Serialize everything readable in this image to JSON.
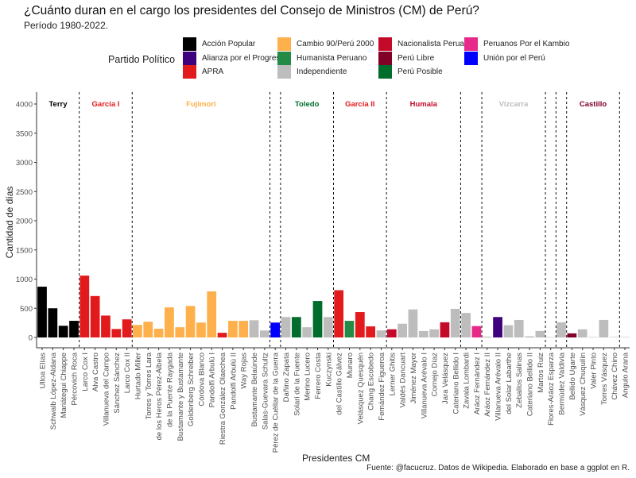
{
  "chart_data": {
    "type": "bar",
    "title": "¿Cuánto duran en el cargo los presidentes del Consejo de Ministros (CM) de Perú?",
    "subtitle": "Período 1980-2022.",
    "xlabel": "Presidentes CM",
    "ylabel": "Cantidad de días",
    "caption": "Fuente: @facucruz. Datos de Wikipedia. Elaborado en base a ggplot en R.",
    "ylim": [
      0,
      4000
    ],
    "yticks": [
      0,
      500,
      1000,
      1500,
      2000,
      2500,
      3000,
      3500,
      4000
    ],
    "grid": false,
    "legend": {
      "title": "Partido Político",
      "placement": "top",
      "entries": [
        {
          "name": "Acción Popular",
          "color": "#000000"
        },
        {
          "name": "Alianza por el Progreso",
          "color": "#3f007d"
        },
        {
          "name": "APRA",
          "color": "#e31a1c"
        },
        {
          "name": "Cambio 90/Perú 2000",
          "color": "#fdb04b"
        },
        {
          "name": "Humanista Peruano",
          "color": "#238b45"
        },
        {
          "name": "Independiente",
          "color": "#bdbdbd"
        },
        {
          "name": "Nacionalista Peruano",
          "color": "#c40a2a"
        },
        {
          "name": "Perú Libre",
          "color": "#800026"
        },
        {
          "name": "Perú Posible",
          "color": "#006d2c"
        },
        {
          "name": "Peruanos Por el Kambio",
          "color": "#e7298a"
        },
        {
          "name": "Unión por el Perú",
          "color": "#0000ff"
        }
      ]
    },
    "periods": [
      {
        "label": "Terry",
        "color": "#000000",
        "start": 0,
        "end": 3
      },
      {
        "label": "García I",
        "color": "#e31a1c",
        "start": 4,
        "end": 8
      },
      {
        "label": "Fujimori",
        "color": "#fdb04b",
        "start": 9,
        "end": 21
      },
      {
        "label": "",
        "color": "#bdbdbd",
        "start": 22,
        "end": 22
      },
      {
        "label": "Toledo",
        "color": "#006d2c",
        "start": 23,
        "end": 27
      },
      {
        "label": "García II",
        "color": "#e31a1c",
        "start": 28,
        "end": 32
      },
      {
        "label": "Humala",
        "color": "#c40a2a",
        "start": 33,
        "end": 39
      },
      {
        "label": "",
        "color": "#bdbdbd",
        "start": 40,
        "end": 41
      },
      {
        "label": "Vizcarra",
        "color": "#bdbdbd",
        "start": 42,
        "end": 47
      },
      {
        "label": "",
        "color": "#bdbdbd",
        "start": 48,
        "end": 48
      },
      {
        "label": "",
        "color": "#bdbdbd",
        "start": 49,
        "end": 49
      },
      {
        "label": "Castillo",
        "color": "#800026",
        "start": 50,
        "end": 54
      },
      {
        "label": "",
        "color": "#bdbdbd",
        "start": 55,
        "end": 55
      }
    ],
    "categories": [
      "Ulloa Elías",
      "Schwalb López-Aldana",
      "Mariátegui Chiappe",
      "Pércovich Roca",
      "Larco Cox I",
      "Alva Castro",
      "Villanueva del Campo",
      "Sánchez Sánchez",
      "Larco Cox II",
      "Hurtado Miller",
      "Torres y Torres Lara",
      "de los Heros Pérez-Albela",
      "de la Puente Raygada",
      "Bustamante y Bustamante",
      "Goldenberg Schreiber",
      "Córdova Blanco",
      "Pandolfi Arbulú I",
      "Riestra González Olaechea",
      "Pandolfi Arbulú II",
      "Way Rojas",
      "Bustamante Belaúnde",
      "Salas-Guevara Schultz",
      "Pérez de Cuéllar de la Guerra",
      "Dañino Zapata",
      "Solari de la Fuente",
      "Merino Lucero",
      "Ferrero Costa",
      "Kuczynski",
      "del Castillo Gálvez",
      "Munaro",
      "Velásquez Quesquén",
      "Chang Escobedo",
      "Fernández Figueroa",
      "Lerner Ghitis",
      "Valdés Dancuart",
      "Jiménez Mayor",
      "Villanueva Arévalo I",
      "Cornejo Díaz",
      "Jara Velásquez",
      "Cateriano Bellido I",
      "Zavala Lombardi",
      "Aráoz Fernández I",
      "Aráoz Fernández II",
      "Villanueva Arévalo II",
      "del Solar Labarthe",
      "Zeballos Salinas",
      "Cateriano Bellido II",
      "Martos Ruiz",
      "Flores-Aráoz Esparza",
      "Bermúdez Valdivia",
      "Bellido Ugarte",
      "Vásquez Chuquilín",
      "Valer Pinto",
      "Torres Vásquez",
      "Chávez Chino",
      "Angulo Arana"
    ],
    "values": [
      870,
      500,
      200,
      285,
      1060,
      710,
      375,
      145,
      310,
      215,
      270,
      150,
      515,
      175,
      540,
      255,
      790,
      80,
      285,
      285,
      295,
      120,
      255,
      350,
      350,
      175,
      625,
      350,
      810,
      285,
      435,
      190,
      120,
      140,
      235,
      480,
      110,
      140,
      260,
      490,
      420,
      195,
      15,
      350,
      210,
      300,
      20,
      110,
      5,
      260,
      70,
      140,
      5,
      300,
      3,
      2
    ],
    "party": [
      "Acción Popular",
      "Acción Popular",
      "Acción Popular",
      "Acción Popular",
      "APRA",
      "APRA",
      "APRA",
      "APRA",
      "APRA",
      "Cambio 90/Perú 2000",
      "Cambio 90/Perú 2000",
      "Cambio 90/Perú 2000",
      "Cambio 90/Perú 2000",
      "Cambio 90/Perú 2000",
      "Cambio 90/Perú 2000",
      "Cambio 90/Perú 2000",
      "Cambio 90/Perú 2000",
      "APRA",
      "Cambio 90/Perú 2000",
      "Cambio 90/Perú 2000",
      "Independiente",
      "Independiente",
      "Unión por el Perú",
      "Independiente",
      "Perú Posible",
      "Independiente",
      "Perú Posible",
      "Independiente",
      "APRA",
      "Humanista Peruano",
      "APRA",
      "APRA",
      "Independiente",
      "Nacionalista Peruano",
      "Independiente",
      "Independiente",
      "Independiente",
      "Independiente",
      "Nacionalista Peruano",
      "Independiente",
      "Independiente",
      "Peruanos Por el Kambio",
      "Independiente",
      "Alianza por el Progreso",
      "Independiente",
      "Independiente",
      "Independiente",
      "Independiente",
      "Independiente",
      "Independiente",
      "Perú Libre",
      "Independiente",
      "Independiente",
      "Independiente",
      "Independiente",
      "Independiente"
    ]
  }
}
